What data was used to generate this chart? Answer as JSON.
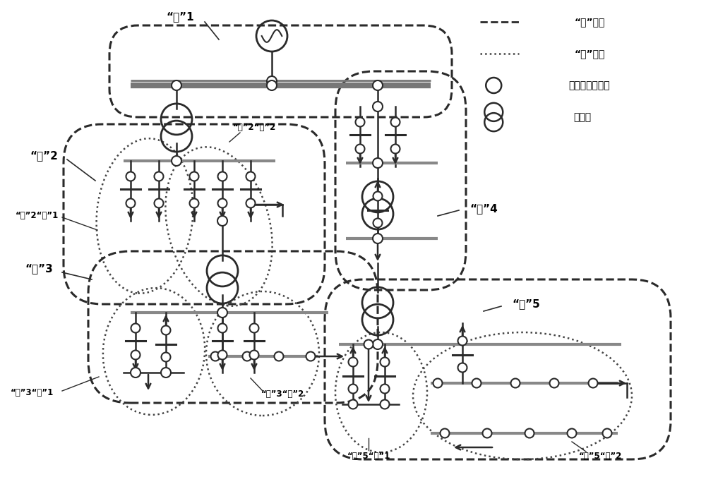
{
  "background": "#ffffff",
  "line_color": "#2a2a2a",
  "bus_color": "#888888",
  "dashed_color": "#2a2a2a",
  "dotted_color": "#444444",
  "legend_items": [
    {
      "style": "dashed",
      "label": "“层”边界"
    },
    {
      "style": "dotted",
      "label": "“域”边界"
    },
    {
      "style": "circle_small",
      "label": "电气量采集单元"
    },
    {
      "style": "transformer",
      "label": "变压器"
    }
  ],
  "labels": {
    "layer1": "“层”1",
    "layer2": "“层”2",
    "layer3": "“层”3",
    "layer4": "“层”4",
    "layer5": "“层”5",
    "zone2_1": "“层”2“域”1",
    "zone2_2": "“层”2“域”2",
    "zone3_1": "“层”3“域”1",
    "zone3_2": "“层”3“域”2",
    "zone5_1": "“层”5“域”1",
    "zone5_2": "“层”5“域”2"
  },
  "figsize": [
    10.0,
    6.76
  ],
  "dpi": 100
}
